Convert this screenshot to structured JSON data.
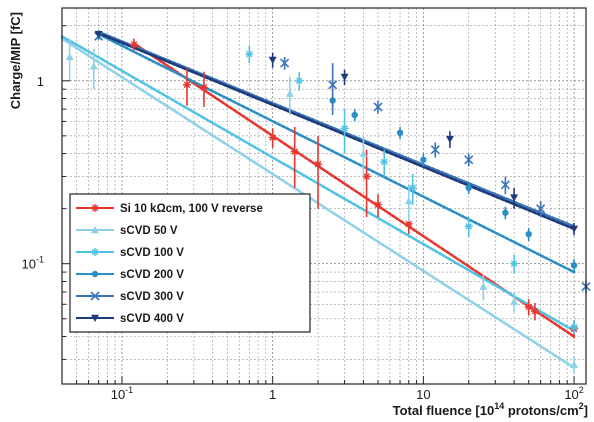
{
  "chart_data": {
    "type": "scatter",
    "title": "",
    "xlabel": "Total fluence [10",
    "xlabel_sup": "14",
    "xlabel_tail": " protons/cm",
    "xlabel_sup2": "2",
    "xlabel_end": "]",
    "ylabel": "Charge/MIP [fC]",
    "x_scale": "log",
    "y_scale": "log",
    "xlim": [
      0.04,
      120
    ],
    "ylim": [
      0.022,
      2.5
    ],
    "grid": true,
    "legend_position": "lower-left",
    "x_ticks": [
      {
        "value": 0.1,
        "base": "10",
        "exp": "-1"
      },
      {
        "value": 1,
        "base": "1",
        "exp": ""
      },
      {
        "value": 10,
        "base": "10",
        "exp": ""
      },
      {
        "value": 100,
        "base": "10",
        "exp": "2"
      }
    ],
    "y_ticks": [
      {
        "value": 0.1,
        "base": "10",
        "exp": "-1"
      },
      {
        "value": 1,
        "base": "1",
        "exp": ""
      }
    ],
    "series": [
      {
        "name": "Si 10 kΩcm, 100 V reverse",
        "color": "#e8362e",
        "marker": "star",
        "fit": {
          "x1": 0.12,
          "y1": 1.6,
          "x2": 100,
          "y2": 0.04
        },
        "points": [
          {
            "x": 0.12,
            "y": 1.58,
            "err": 0.12
          },
          {
            "x": 0.27,
            "y": 0.95,
            "err": 0.22
          },
          {
            "x": 0.35,
            "y": 0.92,
            "err": 0.2
          },
          {
            "x": 1.0,
            "y": 0.49,
            "err": 0.06
          },
          {
            "x": 1.4,
            "y": 0.41,
            "err": 0.15
          },
          {
            "x": 2.0,
            "y": 0.35,
            "err": 0.15
          },
          {
            "x": 4.2,
            "y": 0.3,
            "err": 0.12
          },
          {
            "x": 5.0,
            "y": 0.21,
            "err": 0.03
          },
          {
            "x": 8.0,
            "y": 0.165,
            "err": 0.02
          },
          {
            "x": 50,
            "y": 0.058,
            "err": 0.006
          },
          {
            "x": 55,
            "y": 0.055,
            "err": 0.006
          },
          {
            "x": 100,
            "y": 0.044,
            "err": 0.005
          }
        ]
      },
      {
        "name": "sCVD 50 V",
        "color": "#8fd1e8",
        "marker": "triangle",
        "fit": {
          "x1": 0.04,
          "y1": 1.7,
          "x2": 100,
          "y2": 0.027
        },
        "points": [
          {
            "x": 0.045,
            "y": 1.35,
            "err": 0.35
          },
          {
            "x": 0.065,
            "y": 1.2,
            "err": 0.3
          },
          {
            "x": 1.3,
            "y": 0.85,
            "err": 0.2
          },
          {
            "x": 4.0,
            "y": 0.4,
            "err": 0.1
          },
          {
            "x": 8.0,
            "y": 0.22,
            "err": 0.05
          },
          {
            "x": 25,
            "y": 0.075,
            "err": 0.012
          },
          {
            "x": 40,
            "y": 0.062,
            "err": 0.008
          },
          {
            "x": 100,
            "y": 0.028,
            "err": 0.003
          }
        ]
      },
      {
        "name": "sCVD 100 V",
        "color": "#4fc3e4",
        "marker": "star",
        "fit": {
          "x1": 0.04,
          "y1": 1.75,
          "x2": 100,
          "y2": 0.043
        },
        "points": [
          {
            "x": 0.7,
            "y": 1.4,
            "err": 0.15
          },
          {
            "x": 1.5,
            "y": 1.0,
            "err": 0.12
          },
          {
            "x": 3.0,
            "y": 0.55,
            "err": 0.15
          },
          {
            "x": 5.5,
            "y": 0.36,
            "err": 0.06
          },
          {
            "x": 8.5,
            "y": 0.26,
            "err": 0.05
          },
          {
            "x": 20,
            "y": 0.16,
            "err": 0.02
          },
          {
            "x": 40,
            "y": 0.1,
            "err": 0.012
          },
          {
            "x": 100,
            "y": 0.045,
            "err": 0.004
          }
        ]
      },
      {
        "name": "sCVD 200 V",
        "color": "#2b8fc7",
        "marker": "circle",
        "fit": {
          "x1": 0.07,
          "y1": 1.8,
          "x2": 100,
          "y2": 0.09
        },
        "points": [
          {
            "x": 2.5,
            "y": 0.78,
            "err": 0.05
          },
          {
            "x": 3.5,
            "y": 0.65,
            "err": 0.05
          },
          {
            "x": 7.0,
            "y": 0.52,
            "err": 0.04
          },
          {
            "x": 10,
            "y": 0.37,
            "err": 0.03
          },
          {
            "x": 20,
            "y": 0.26,
            "err": 0.02
          },
          {
            "x": 35,
            "y": 0.19,
            "err": 0.015
          },
          {
            "x": 50,
            "y": 0.145,
            "err": 0.012
          },
          {
            "x": 100,
            "y": 0.098,
            "err": 0.008
          }
        ]
      },
      {
        "name": "sCVD 300 V",
        "color": "#3b74b8",
        "marker": "cross",
        "fit": {
          "x1": 0.07,
          "y1": 1.85,
          "x2": 100,
          "y2": 0.16
        },
        "points": [
          {
            "x": 0.07,
            "y": 1.75,
            "err": 0.08
          },
          {
            "x": 1.2,
            "y": 1.25,
            "err": 0.1
          },
          {
            "x": 2.5,
            "y": 0.95,
            "err": 0.3
          },
          {
            "x": 5.0,
            "y": 0.72,
            "err": 0.06
          },
          {
            "x": 12,
            "y": 0.42,
            "err": 0.04
          },
          {
            "x": 20,
            "y": 0.37,
            "err": 0.03
          },
          {
            "x": 35,
            "y": 0.27,
            "err": 0.03
          },
          {
            "x": 60,
            "y": 0.2,
            "err": 0.02
          },
          {
            "x": 120,
            "y": 0.075,
            "err": 0.006
          }
        ]
      },
      {
        "name": "sCVD 400 V",
        "color": "#1f3a7a",
        "marker": "triangle-down",
        "fit": {
          "x1": 0.07,
          "y1": 1.82,
          "x2": 100,
          "y2": 0.155
        },
        "points": [
          {
            "x": 0.07,
            "y": 1.8,
            "err": 0.08
          },
          {
            "x": 1.0,
            "y": 1.3,
            "err": 0.12
          },
          {
            "x": 3.0,
            "y": 1.05,
            "err": 0.1
          },
          {
            "x": 15,
            "y": 0.48,
            "err": 0.05
          },
          {
            "x": 40,
            "y": 0.23,
            "err": 0.03
          },
          {
            "x": 100,
            "y": 0.155,
            "err": 0.012
          }
        ]
      }
    ]
  }
}
